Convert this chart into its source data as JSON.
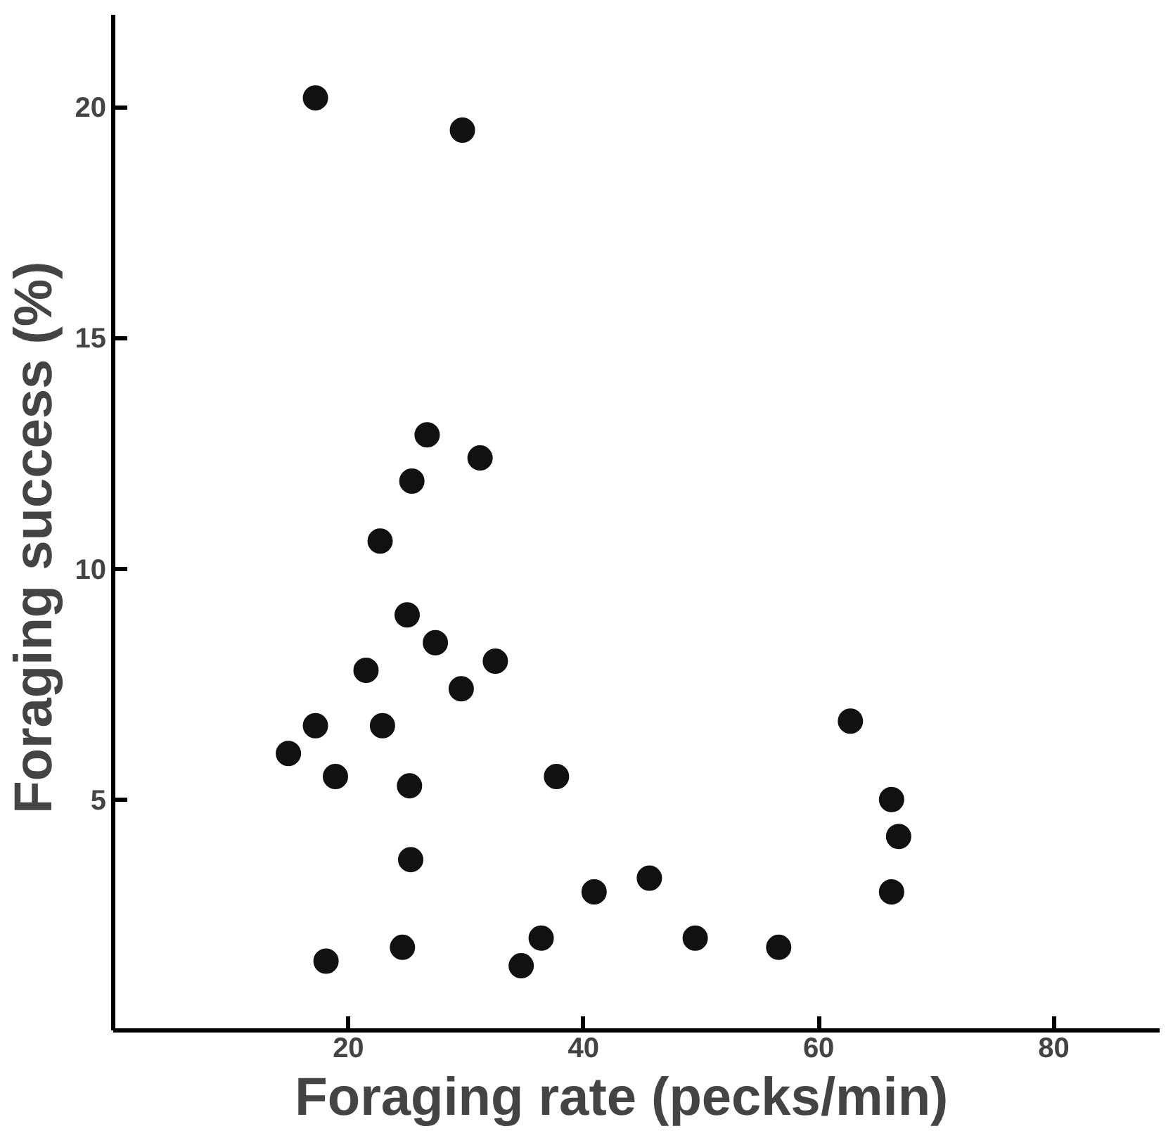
{
  "chart_data": {
    "type": "scatter",
    "xlabel": "Foraging  rate  (pecks/min)",
    "ylabel": "Foraging  success  (%)",
    "x": [
      17.2,
      29.7,
      26.7,
      31.2,
      25.4,
      22.7,
      25.0,
      27.4,
      21.5,
      32.5,
      29.6,
      22.9,
      17.2,
      14.9,
      18.9,
      25.2,
      37.7,
      25.3,
      62.7,
      66.2,
      66.8,
      66.2,
      40.9,
      45.6,
      36.4,
      49.5,
      56.6,
      24.6,
      18.1,
      34.7
    ],
    "values": [
      20.2,
      19.5,
      12.9,
      12.4,
      11.9,
      10.6,
      9.0,
      8.4,
      7.8,
      8.0,
      7.4,
      6.6,
      6.6,
      6.0,
      5.5,
      5.3,
      5.5,
      3.7,
      6.7,
      5.0,
      4.2,
      3.0,
      3.0,
      3.3,
      2.0,
      2.0,
      1.8,
      1.8,
      1.5,
      1.4
    ],
    "color": "#111111",
    "marker": "circle",
    "xlim": [
      0,
      89
    ],
    "ylim": [
      0,
      22
    ],
    "xticks": [
      20,
      40,
      60,
      80
    ],
    "yticks": [
      5,
      10,
      15,
      20
    ],
    "grid": false
  }
}
